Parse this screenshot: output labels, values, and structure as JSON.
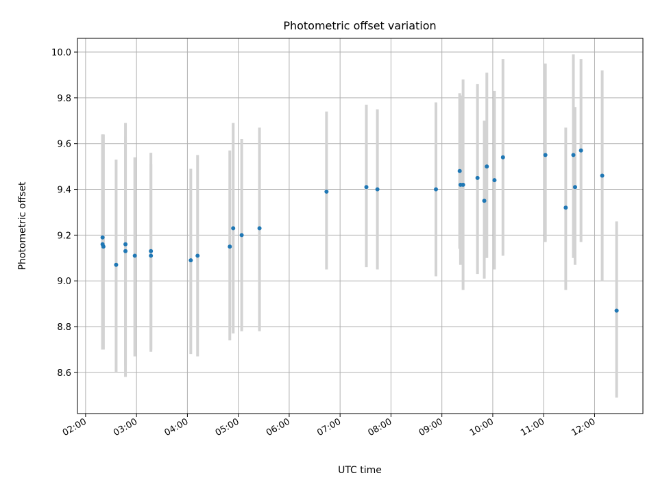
{
  "chart_data": {
    "type": "scatter",
    "title": "Photometric offset variation",
    "xlabel": "UTC time",
    "ylabel": "Photometric offset",
    "x_range_hours": [
      1.84,
      12.95
    ],
    "ylim": [
      8.42,
      10.06
    ],
    "x_ticks": [
      "02:00",
      "03:00",
      "04:00",
      "05:00",
      "06:00",
      "07:00",
      "08:00",
      "09:00",
      "10:00",
      "11:00",
      "12:00"
    ],
    "y_ticks": [
      "8.6",
      "8.8",
      "9.0",
      "9.2",
      "9.4",
      "9.6",
      "9.8",
      "10.0"
    ],
    "grid": true,
    "colors": {
      "points": "#1f77b4",
      "error_bars": "#d3d3d3",
      "grid": "#b0b0b0"
    },
    "points": [
      {
        "time": "02:20",
        "y": 9.19,
        "yerr_low": 8.7,
        "yerr_high": 9.64
      },
      {
        "time": "02:20",
        "y": 9.16,
        "yerr_low": 8.7,
        "yerr_high": 9.64
      },
      {
        "time": "02:21",
        "y": 9.15,
        "yerr_low": 8.7,
        "yerr_high": 9.64
      },
      {
        "time": "02:36",
        "y": 9.07,
        "yerr_low": 8.6,
        "yerr_high": 9.53
      },
      {
        "time": "02:47",
        "y": 9.16,
        "yerr_low": 8.58,
        "yerr_high": 9.69
      },
      {
        "time": "02:47",
        "y": 9.13,
        "yerr_low": 8.63,
        "yerr_high": 9.63
      },
      {
        "time": "02:58",
        "y": 9.11,
        "yerr_low": 8.67,
        "yerr_high": 9.54
      },
      {
        "time": "03:17",
        "y": 9.13,
        "yerr_low": 8.7,
        "yerr_high": 9.56
      },
      {
        "time": "03:17",
        "y": 9.11,
        "yerr_low": 8.69,
        "yerr_high": 9.51
      },
      {
        "time": "04:04",
        "y": 9.09,
        "yerr_low": 8.68,
        "yerr_high": 9.49
      },
      {
        "time": "04:12",
        "y": 9.11,
        "yerr_low": 8.67,
        "yerr_high": 9.55
      },
      {
        "time": "04:50",
        "y": 9.15,
        "yerr_low": 8.74,
        "yerr_high": 9.57
      },
      {
        "time": "04:54",
        "y": 9.23,
        "yerr_low": 8.77,
        "yerr_high": 9.69
      },
      {
        "time": "05:04",
        "y": 9.2,
        "yerr_low": 8.78,
        "yerr_high": 9.62
      },
      {
        "time": "05:25",
        "y": 9.23,
        "yerr_low": 8.78,
        "yerr_high": 9.67
      },
      {
        "time": "06:44",
        "y": 9.39,
        "yerr_low": 9.05,
        "yerr_high": 9.74
      },
      {
        "time": "07:31",
        "y": 9.41,
        "yerr_low": 9.06,
        "yerr_high": 9.77
      },
      {
        "time": "07:44",
        "y": 9.4,
        "yerr_low": 9.05,
        "yerr_high": 9.75
      },
      {
        "time": "08:53",
        "y": 9.4,
        "yerr_low": 9.02,
        "yerr_high": 9.78
      },
      {
        "time": "09:21",
        "y": 9.48,
        "yerr_low": 9.14,
        "yerr_high": 9.82
      },
      {
        "time": "09:22",
        "y": 9.42,
        "yerr_low": 9.07,
        "yerr_high": 9.81
      },
      {
        "time": "09:25",
        "y": 9.42,
        "yerr_low": 8.96,
        "yerr_high": 9.88
      },
      {
        "time": "09:42",
        "y": 9.45,
        "yerr_low": 9.03,
        "yerr_high": 9.86
      },
      {
        "time": "09:50",
        "y": 9.35,
        "yerr_low": 9.01,
        "yerr_high": 9.7
      },
      {
        "time": "09:53",
        "y": 9.5,
        "yerr_low": 9.1,
        "yerr_high": 9.91
      },
      {
        "time": "10:02",
        "y": 9.44,
        "yerr_low": 9.05,
        "yerr_high": 9.83
      },
      {
        "time": "10:12",
        "y": 9.54,
        "yerr_low": 9.11,
        "yerr_high": 9.97
      },
      {
        "time": "11:02",
        "y": 9.55,
        "yerr_low": 9.17,
        "yerr_high": 9.95
      },
      {
        "time": "11:26",
        "y": 9.32,
        "yerr_low": 8.96,
        "yerr_high": 9.67
      },
      {
        "time": "11:35",
        "y": 9.55,
        "yerr_low": 9.1,
        "yerr_high": 9.99
      },
      {
        "time": "11:37",
        "y": 9.41,
        "yerr_low": 9.07,
        "yerr_high": 9.76
      },
      {
        "time": "11:44",
        "y": 9.57,
        "yerr_low": 9.17,
        "yerr_high": 9.97
      },
      {
        "time": "12:09",
        "y": 9.46,
        "yerr_low": 9.0,
        "yerr_high": 9.92
      },
      {
        "time": "12:26",
        "y": 8.87,
        "yerr_low": 8.49,
        "yerr_high": 9.26
      }
    ]
  }
}
